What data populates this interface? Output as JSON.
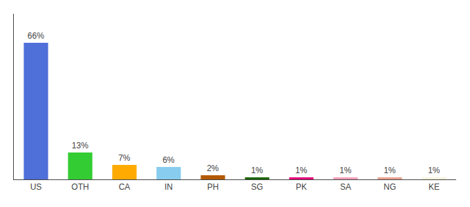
{
  "chart_data": {
    "type": "bar",
    "categories": [
      "US",
      "OTH",
      "CA",
      "IN",
      "PH",
      "SG",
      "PK",
      "SA",
      "NG",
      "KE"
    ],
    "values": [
      66,
      13,
      7,
      6,
      2,
      1,
      1,
      1,
      1,
      1
    ],
    "value_labels": [
      "66%",
      "13%",
      "7%",
      "6%",
      "2%",
      "1%",
      "1%",
      "1%",
      "1%",
      "1%"
    ],
    "colors": [
      "#4f6fd9",
      "#33cc33",
      "#ffaa00",
      "#88ccee",
      "#b35900",
      "#1a6600",
      "#e6007a",
      "#f0a0b8",
      "#e8a090",
      "#f5f2dc"
    ],
    "ylim": [
      0,
      80
    ],
    "data_labels": true,
    "tick_labels": "x",
    "grid": false
  }
}
